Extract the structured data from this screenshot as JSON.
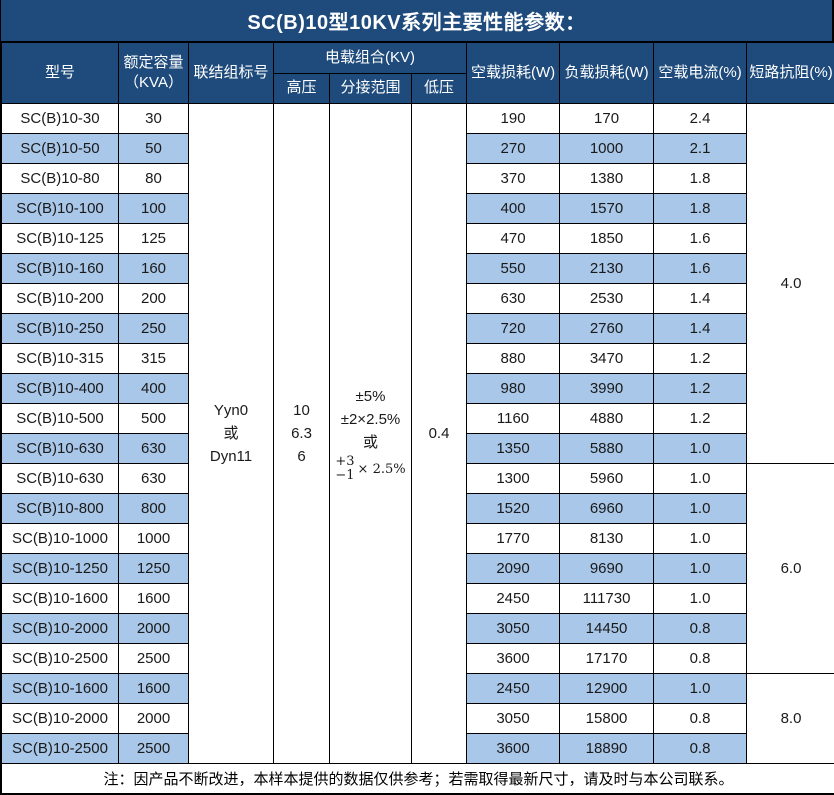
{
  "title": "SC(B)10型10KV系列主要性能参数：",
  "header": {
    "model": "型号",
    "capacity_line1": "额定容量",
    "capacity_line2": "（KVA）",
    "connection": "联结组标号",
    "voltage_group": "电载组合(KV)",
    "hv": "高压",
    "tap_range": "分接范围",
    "lv": "低压",
    "no_load_loss": "空载损耗(W)",
    "load_loss": "负载损耗(W)",
    "no_load_current": "空载电流(%)",
    "impedance": "短路抗阻(%)"
  },
  "merged": {
    "connection_lines": [
      "Yyn0",
      "或",
      "Dyn11"
    ],
    "hv_lines": [
      "10",
      "6.3",
      "6"
    ],
    "tap_lines": [
      "±5%",
      "±2×2.5%",
      "或"
    ],
    "tap_plus": "+3",
    "tap_minus": "−1",
    "tap_mult": "× 2.5%",
    "lv_value": "0.4"
  },
  "rows": [
    {
      "model": "SC(B)10-30",
      "kva": "30",
      "no_load": "190",
      "load": "170",
      "current": "2.4"
    },
    {
      "model": "SC(B)10-50",
      "kva": "50",
      "no_load": "270",
      "load": "1000",
      "current": "2.1"
    },
    {
      "model": "SC(B)10-80",
      "kva": "80",
      "no_load": "370",
      "load": "1380",
      "current": "1.8"
    },
    {
      "model": "SC(B)10-100",
      "kva": "100",
      "no_load": "400",
      "load": "1570",
      "current": "1.8"
    },
    {
      "model": "SC(B)10-125",
      "kva": "125",
      "no_load": "470",
      "load": "1850",
      "current": "1.6"
    },
    {
      "model": "SC(B)10-160",
      "kva": "160",
      "no_load": "550",
      "load": "2130",
      "current": "1.6"
    },
    {
      "model": "SC(B)10-200",
      "kva": "200",
      "no_load": "630",
      "load": "2530",
      "current": "1.4"
    },
    {
      "model": "SC(B)10-250",
      "kva": "250",
      "no_load": "720",
      "load": "2760",
      "current": "1.4"
    },
    {
      "model": "SC(B)10-315",
      "kva": "315",
      "no_load": "880",
      "load": "3470",
      "current": "1.2"
    },
    {
      "model": "SC(B)10-400",
      "kva": "400",
      "no_load": "980",
      "load": "3990",
      "current": "1.2"
    },
    {
      "model": "SC(B)10-500",
      "kva": "500",
      "no_load": "1160",
      "load": "4880",
      "current": "1.2"
    },
    {
      "model": "SC(B)10-630",
      "kva": "630",
      "no_load": "1350",
      "load": "5880",
      "current": "1.0"
    },
    {
      "model": "SC(B)10-630",
      "kva": "630",
      "no_load": "1300",
      "load": "5960",
      "current": "1.0"
    },
    {
      "model": "SC(B)10-800",
      "kva": "800",
      "no_load": "1520",
      "load": "6960",
      "current": "1.0"
    },
    {
      "model": "SC(B)10-1000",
      "kva": "1000",
      "no_load": "1770",
      "load": "8130",
      "current": "1.0"
    },
    {
      "model": "SC(B)10-1250",
      "kva": "1250",
      "no_load": "2090",
      "load": "9690",
      "current": "1.0"
    },
    {
      "model": "SC(B)10-1600",
      "kva": "1600",
      "no_load": "2450",
      "load": "111730",
      "current": "1.0"
    },
    {
      "model": "SC(B)10-2000",
      "kva": "2000",
      "no_load": "3050",
      "load": "14450",
      "current": "0.8"
    },
    {
      "model": "SC(B)10-2500",
      "kva": "2500",
      "no_load": "3600",
      "load": "17170",
      "current": "0.8"
    },
    {
      "model": "SC(B)10-1600",
      "kva": "1600",
      "no_load": "2450",
      "load": "12900",
      "current": "1.0"
    },
    {
      "model": "SC(B)10-2000",
      "kva": "2000",
      "no_load": "3050",
      "load": "15800",
      "current": "0.8"
    },
    {
      "model": "SC(B)10-2500",
      "kva": "2500",
      "no_load": "3600",
      "load": "18890",
      "current": "0.8"
    }
  ],
  "impedance_groups": [
    {
      "value": "4.0",
      "span": 12
    },
    {
      "value": "6.0",
      "span": 7
    },
    {
      "value": "8.0",
      "span": 3
    }
  ],
  "note": "注：因产品不断改进，本样本提供的数据仅供参考；若需取得最新尺寸，请及时与本公司联系。",
  "colors": {
    "header_bg": "#1e4b7c",
    "row_alt_bg": "#a9c7e8",
    "border": "#000000",
    "text": "#1a1a1a",
    "header_text": "#ffffff"
  }
}
